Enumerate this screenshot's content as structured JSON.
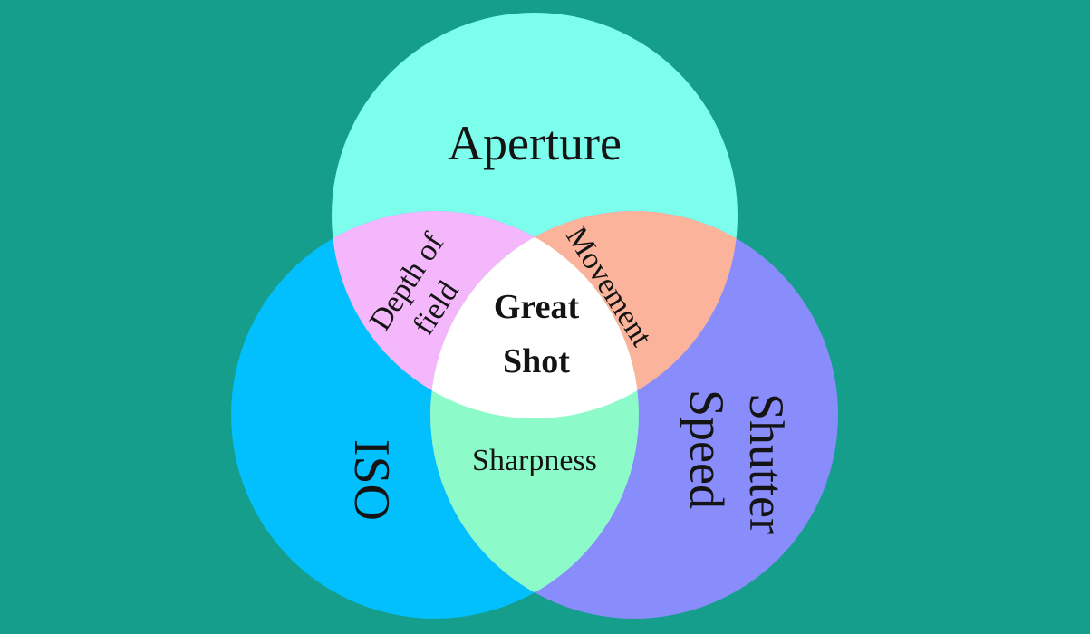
{
  "colors": {
    "background": "#159e8c",
    "aperture": "#7dfdec",
    "iso": "#01c0fd",
    "shutter_speed": "#898cfb",
    "depth_of_field": "#f4b7fb",
    "movement": "#fbb39b",
    "sharpness": "#8dfbc9",
    "great_shot": "#ffffff",
    "text": "#141414"
  },
  "circles": {
    "aperture": {
      "label": "Aperture"
    },
    "iso": {
      "label": "ISO"
    },
    "shutter_speed": {
      "label_line1": "Shutter",
      "label_line2": "Speed"
    }
  },
  "overlaps": {
    "depth_of_field": {
      "label_line1": "Depth of",
      "label_line2": "field"
    },
    "movement": {
      "label": "Movement"
    },
    "sharpness": {
      "label": "Sharpness"
    },
    "great_shot": {
      "label_line1": "Great",
      "label_line2": "Shot"
    }
  }
}
